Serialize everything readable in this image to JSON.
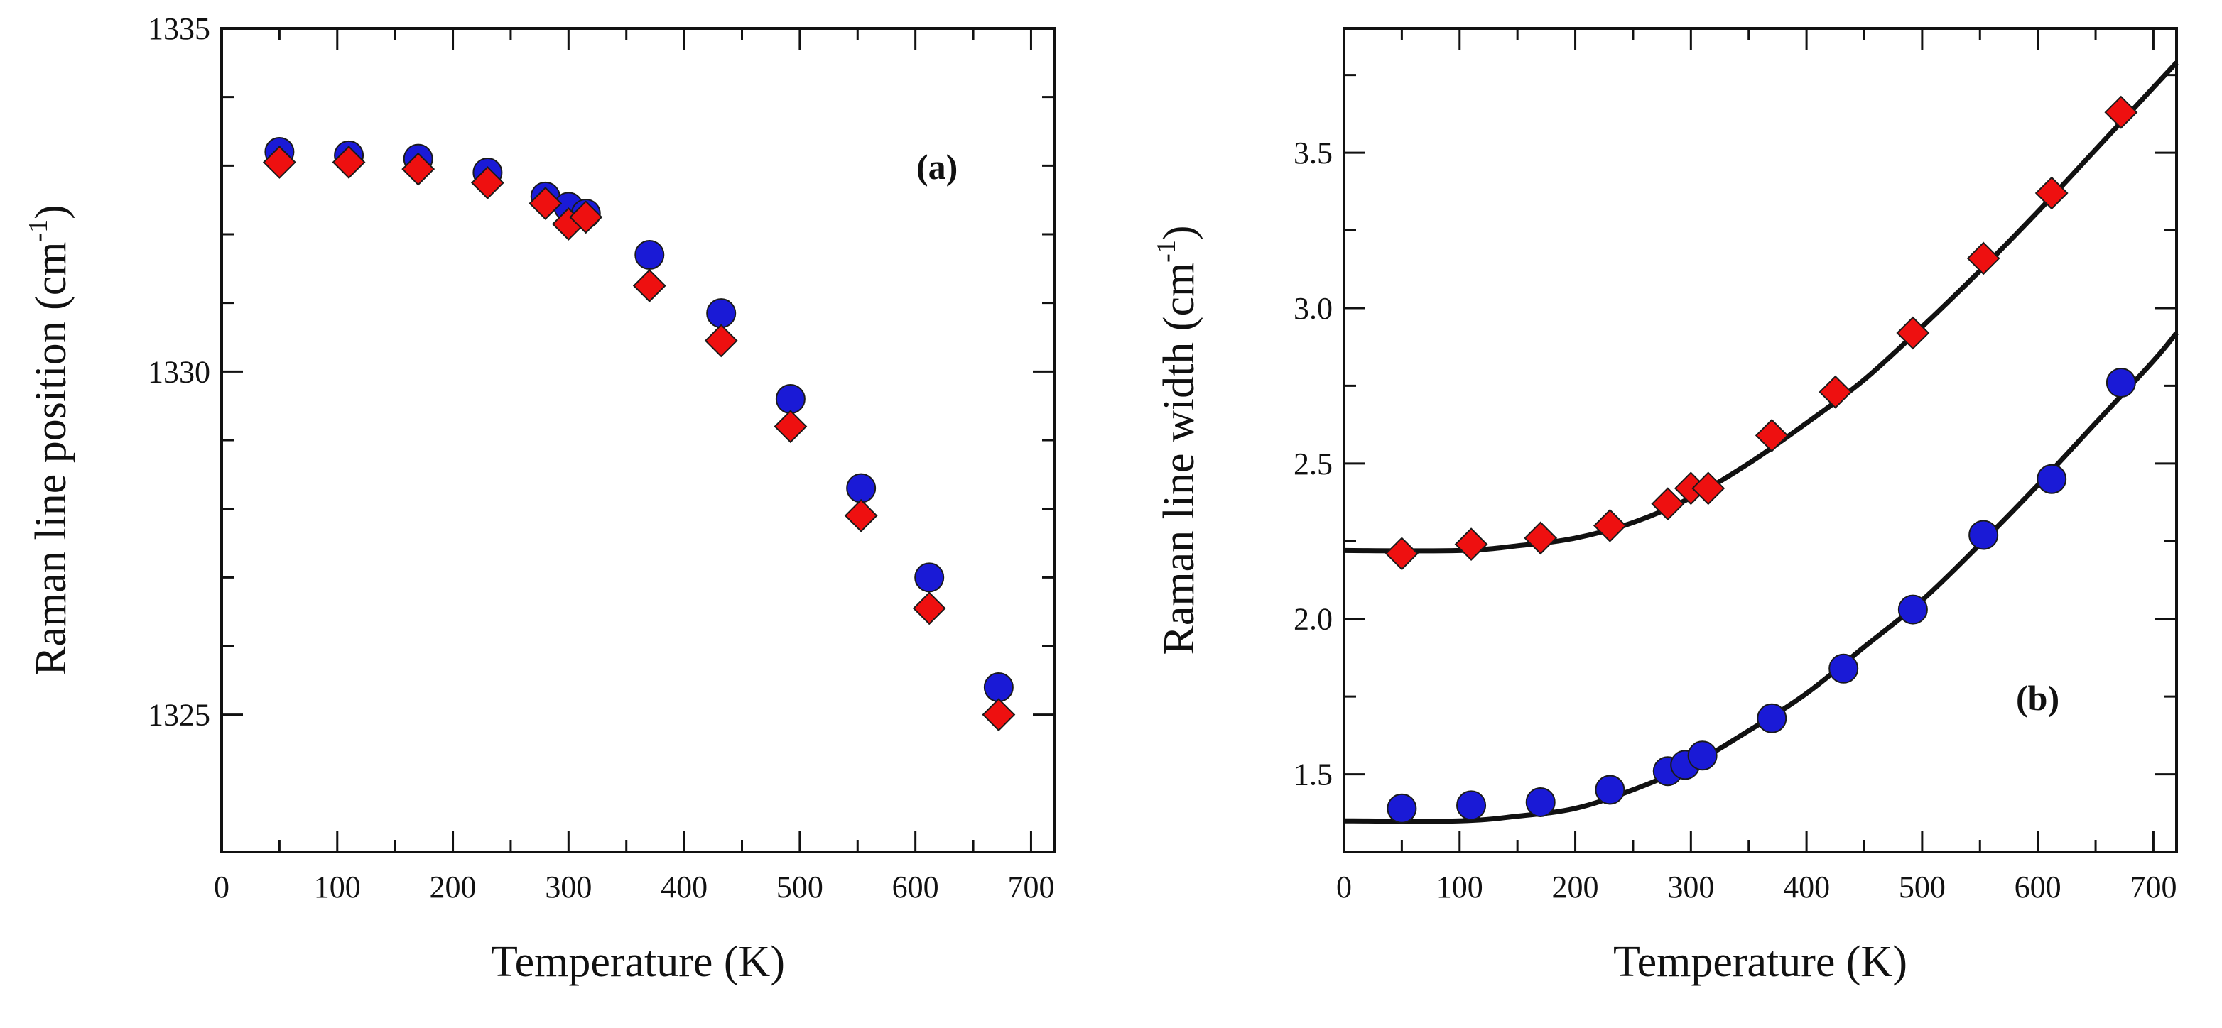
{
  "colors": {
    "series_circle": "#1a1ad6",
    "series_diamond": "#ee1010",
    "marker_outline": "#1a1a1a",
    "fit_line": "#111111",
    "axes": "#111111"
  },
  "chart_data": [
    {
      "type": "scatter",
      "panel_label": "(a)",
      "xlabel": "Temperature (K)",
      "ylabel": "Raman line position (cm",
      "ylabel_sup": "-1",
      "ylabel_close": ")",
      "xlim": [
        0,
        720
      ],
      "ylim": [
        1323,
        1335
      ],
      "xticks": [
        0,
        100,
        200,
        300,
        400,
        500,
        600,
        700
      ],
      "yticks_labeled": [
        1325,
        1330,
        1335
      ],
      "yticks_minor": [
        1326,
        1327,
        1328,
        1329,
        1331,
        1332,
        1333,
        1334
      ],
      "grid": false,
      "series": [
        {
          "marker": "circle",
          "x": [
            50,
            110,
            170,
            230,
            280,
            300,
            315,
            370,
            432,
            492,
            553,
            612,
            672
          ],
          "y": [
            1333.2,
            1333.15,
            1333.1,
            1332.9,
            1332.55,
            1332.4,
            1332.3,
            1331.7,
            1330.85,
            1329.6,
            1328.3,
            1327.0,
            1325.4
          ]
        },
        {
          "marker": "diamond",
          "x": [
            50,
            110,
            170,
            230,
            280,
            300,
            315,
            370,
            432,
            492,
            553,
            612,
            672
          ],
          "y": [
            1333.05,
            1333.05,
            1332.95,
            1332.75,
            1332.45,
            1332.15,
            1332.25,
            1331.25,
            1330.45,
            1329.2,
            1327.9,
            1326.55,
            1325.0
          ]
        }
      ]
    },
    {
      "type": "scatter",
      "panel_label": "(b)",
      "xlabel": "Temperature (K)",
      "ylabel": "Raman line width (cm",
      "ylabel_sup": "-1",
      "ylabel_close": ")",
      "xlim": [
        0,
        720
      ],
      "ylim": [
        1.25,
        3.9
      ],
      "xticks": [
        0,
        100,
        200,
        300,
        400,
        500,
        600,
        700
      ],
      "yticks": [
        1.5,
        2.0,
        2.5,
        3.0,
        3.5
      ],
      "yticks_minor": [
        1.25,
        1.75,
        2.25,
        2.75,
        3.25,
        3.75
      ],
      "grid": false,
      "series": [
        {
          "marker": "diamond",
          "x": [
            50,
            110,
            170,
            230,
            280,
            300,
            315,
            370,
            425,
            492,
            553,
            612,
            672
          ],
          "y": [
            2.21,
            2.24,
            2.26,
            2.3,
            2.37,
            2.42,
            2.42,
            2.59,
            2.73,
            2.92,
            3.16,
            3.37,
            3.63
          ]
        },
        {
          "marker": "circle",
          "x": [
            50,
            110,
            170,
            230,
            280,
            295,
            310,
            370,
            432,
            492,
            553,
            612,
            672
          ],
          "y": [
            1.39,
            1.4,
            1.41,
            1.45,
            1.51,
            1.53,
            1.56,
            1.68,
            1.84,
            2.03,
            2.27,
            2.45,
            2.76
          ]
        }
      ],
      "fit_curves": [
        {
          "line": "solid",
          "x": [
            0,
            100,
            150,
            200,
            250,
            300,
            350,
            400,
            450,
            500,
            550,
            600,
            650,
            700,
            720
          ],
          "y": [
            2.22,
            2.22,
            2.235,
            2.26,
            2.31,
            2.39,
            2.5,
            2.63,
            2.77,
            2.94,
            3.12,
            3.31,
            3.51,
            3.71,
            3.79
          ]
        },
        {
          "line": "solid",
          "x": [
            0,
            100,
            150,
            200,
            250,
            300,
            350,
            400,
            450,
            500,
            550,
            600,
            650,
            700,
            720
          ],
          "y": [
            1.35,
            1.35,
            1.365,
            1.39,
            1.45,
            1.53,
            1.64,
            1.76,
            1.91,
            2.06,
            2.24,
            2.43,
            2.63,
            2.83,
            2.92
          ]
        }
      ]
    }
  ]
}
